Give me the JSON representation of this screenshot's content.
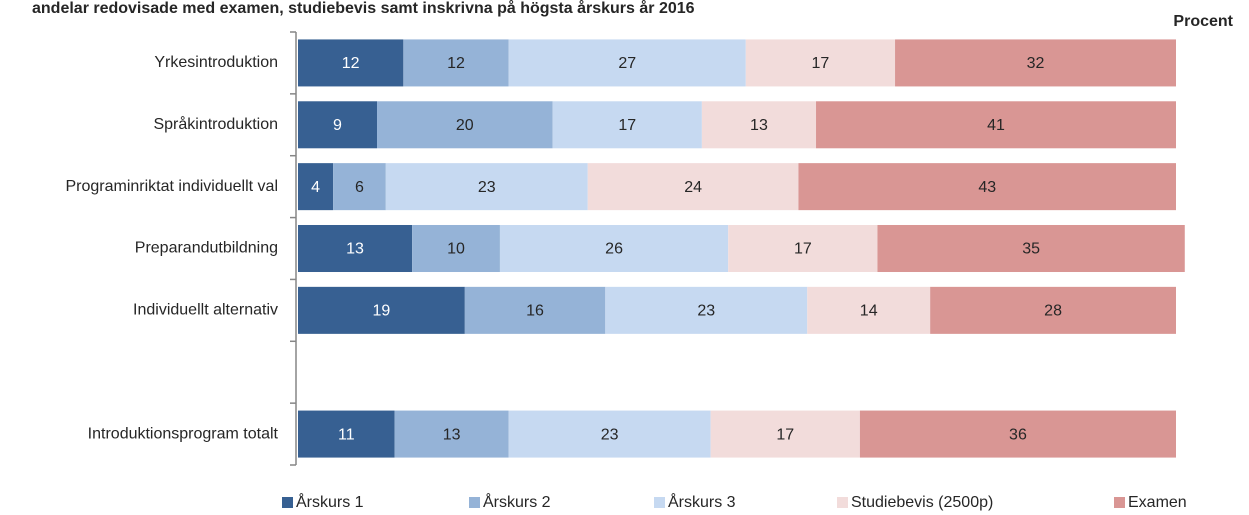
{
  "chart_data": {
    "type": "stacked-bar-horizontal",
    "title": "andelar redovisade med examen, studiebevis samt inskrivna på högsta årskurs år 2016",
    "axis_label": "Procent",
    "categories": [
      "Yrkesintroduktion",
      "Språkintroduktion",
      "Programinriktat individuellt val",
      "Preparandutbildning",
      "Individuellt alternativ",
      null,
      "Introduktionsprogram totalt"
    ],
    "series": [
      {
        "name": "Årskurs 1",
        "color": "#376092",
        "values": [
          12,
          9,
          4,
          13,
          19,
          null,
          11
        ]
      },
      {
        "name": "Årskurs 2",
        "color": "#95b3d7",
        "values": [
          12,
          20,
          6,
          10,
          16,
          null,
          13
        ]
      },
      {
        "name": "Årskurs 3",
        "color": "#c6d9f1",
        "values": [
          27,
          17,
          23,
          26,
          23,
          null,
          23
        ]
      },
      {
        "name": "Studiebevis (2500p)",
        "color": "#f2dcdb",
        "values": [
          17,
          13,
          24,
          17,
          14,
          null,
          17
        ]
      },
      {
        "name": "Examen",
        "color": "#d99694",
        "values": [
          32,
          41,
          43,
          35,
          28,
          null,
          36
        ]
      }
    ],
    "xlim": [
      0,
      100
    ]
  }
}
